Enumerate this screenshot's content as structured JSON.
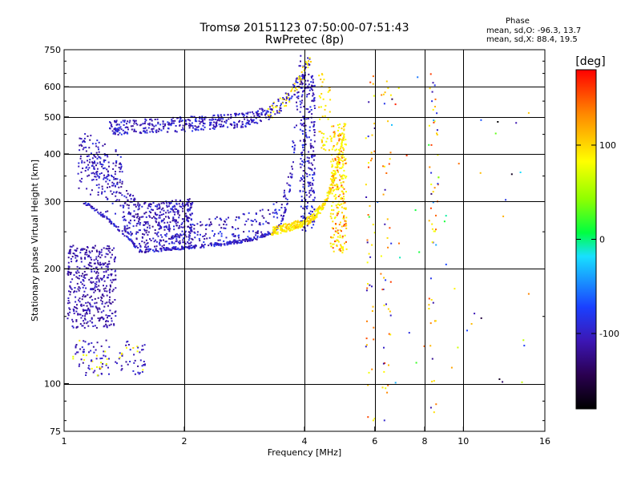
{
  "title": "Tromsø 20151123 07:50:00-07:51:43",
  "subtitle": "RwPretec (8p)",
  "stats": {
    "heading": "Phase",
    "line_o": "mean, sd,O: -96.3, 13.7",
    "line_x": "mean, sd,X:  88.4, 19.5"
  },
  "colorbar": {
    "unit": "[deg]",
    "ticks": [
      100,
      0,
      -100
    ],
    "range": [
      -180,
      180
    ]
  },
  "chart_data": {
    "type": "scatter",
    "xlabel": "Frequency [MHz]",
    "ylabel": "Stationary phase Virtual Height [km]",
    "xscale": "log",
    "yscale": "log",
    "xlim": [
      1,
      16
    ],
    "ylim": [
      75,
      750
    ],
    "xticks": [
      1,
      2,
      4,
      6,
      8,
      10,
      16
    ],
    "yticks": [
      75,
      100,
      200,
      300,
      400,
      500,
      600,
      750
    ],
    "grid": true,
    "color_by": "phase [deg]",
    "clusters": [
      {
        "kind": "lower_trace",
        "x_range": [
          1.08,
          4.2
        ],
        "y_min": 220,
        "phase": -100
      },
      {
        "kind": "upper_trace",
        "x_range": [
          1.3,
          4.3
        ],
        "y_min": 450,
        "phase": -100
      },
      {
        "kind": "x_trace",
        "x_range": [
          3.3,
          5.0
        ],
        "phase": 95
      },
      {
        "kind": "low_noise",
        "x_range": [
          1.0,
          1.6
        ],
        "y_range": [
          105,
          380
        ],
        "phase": -110
      },
      {
        "kind": "vertical_column",
        "x": 4.05,
        "y_range": [
          250,
          650
        ],
        "phase": -100
      },
      {
        "kind": "vertical_column",
        "x": 4.95,
        "y_range": [
          200,
          480
        ],
        "phase": 95
      },
      {
        "kind": "scattered",
        "x_range": [
          5.5,
          15
        ],
        "y_range": [
          80,
          650
        ],
        "phase": "mixed"
      }
    ]
  }
}
